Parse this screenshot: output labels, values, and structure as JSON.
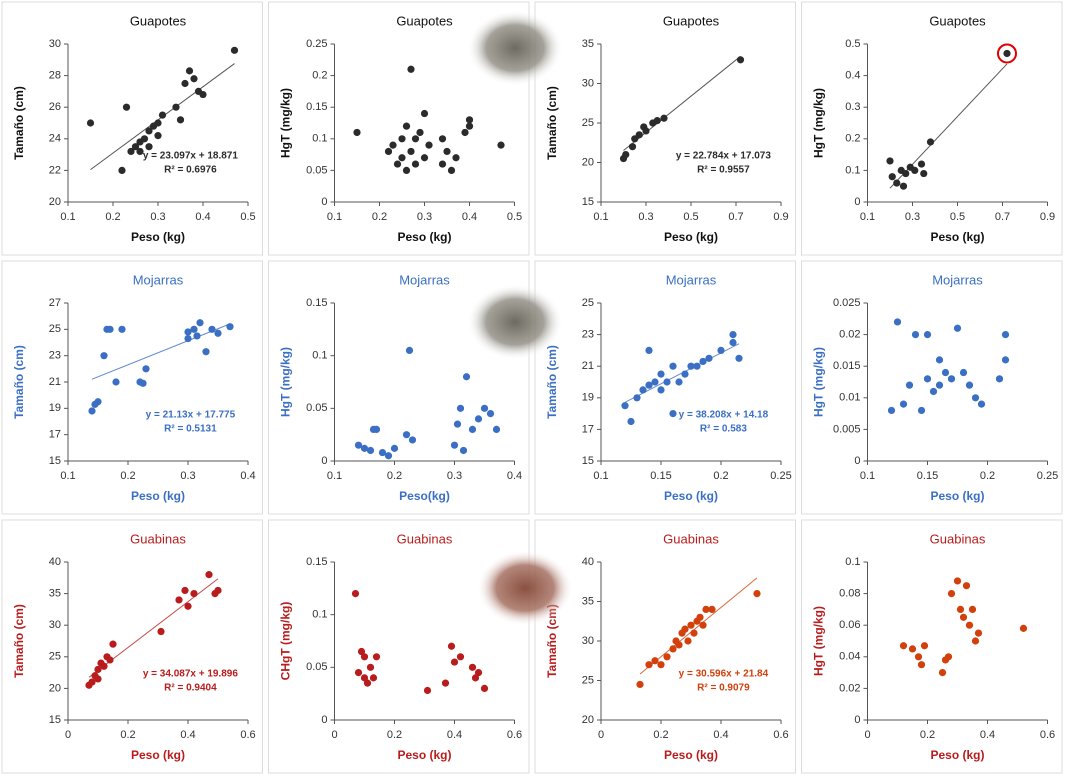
{
  "chart_data": [
    {
      "type": "scatter",
      "title": "Guapotes",
      "xlabel": "Peso (kg)",
      "ylabel": "Tamaño (cm)",
      "color": "#2b2b2b",
      "title_color": "#111111",
      "trendline": true,
      "xlim": [
        0.1,
        0.5
      ],
      "xticks": [
        0.1,
        0.2,
        0.3,
        0.4,
        0.5
      ],
      "ylim": [
        20,
        30
      ],
      "yticks": [
        20,
        22,
        24,
        26,
        28,
        30
      ],
      "x": [
        0.15,
        0.22,
        0.23,
        0.24,
        0.25,
        0.26,
        0.26,
        0.27,
        0.28,
        0.28,
        0.29,
        0.3,
        0.3,
        0.31,
        0.34,
        0.35,
        0.36,
        0.37,
        0.38,
        0.39,
        0.4,
        0.47
      ],
      "values": [
        25,
        22,
        26,
        23.2,
        23.5,
        23.8,
        23.2,
        24,
        24.5,
        23.5,
        24.8,
        25,
        24.2,
        25.5,
        26,
        25.2,
        27.5,
        28.3,
        27.8,
        27,
        26.8,
        29.6
      ],
      "annotations": [
        "y = 23.097x + 18.871",
        "R² = 0.6976"
      ]
    },
    {
      "type": "scatter",
      "title": "Guapotes",
      "xlabel": "Peso (kg)",
      "ylabel": "HgT (mg/kg)",
      "color": "#2b2b2b",
      "title_color": "#111111",
      "trendline": false,
      "xlim": [
        0.1,
        0.5
      ],
      "xticks": [
        0.1,
        0.2,
        0.3,
        0.4,
        0.5
      ],
      "ylim": [
        0,
        0.25
      ],
      "yticks": [
        0,
        0.05,
        0.1,
        0.15,
        0.2,
        0.25
      ],
      "x": [
        0.15,
        0.22,
        0.23,
        0.24,
        0.25,
        0.25,
        0.26,
        0.26,
        0.27,
        0.27,
        0.28,
        0.28,
        0.29,
        0.3,
        0.3,
        0.31,
        0.34,
        0.34,
        0.35,
        0.36,
        0.37,
        0.39,
        0.4,
        0.4,
        0.47
      ],
      "values": [
        0.11,
        0.08,
        0.09,
        0.06,
        0.1,
        0.07,
        0.12,
        0.05,
        0.21,
        0.08,
        0.1,
        0.06,
        0.11,
        0.07,
        0.14,
        0.09,
        0.1,
        0.06,
        0.08,
        0.05,
        0.07,
        0.11,
        0.13,
        0.12,
        0.09
      ]
    },
    {
      "type": "scatter",
      "title": "Guapotes",
      "xlabel": "Peso (kg)",
      "ylabel": "Tamaño (cm)",
      "color": "#2b2b2b",
      "title_color": "#111111",
      "trendline": true,
      "xlim": [
        0.1,
        0.9
      ],
      "xticks": [
        0.1,
        0.3,
        0.5,
        0.7,
        0.9
      ],
      "ylim": [
        15,
        35
      ],
      "yticks": [
        15,
        20,
        25,
        30,
        35
      ],
      "x": [
        0.2,
        0.21,
        0.24,
        0.25,
        0.27,
        0.29,
        0.3,
        0.33,
        0.35,
        0.38,
        0.72
      ],
      "values": [
        20.5,
        21,
        22,
        23,
        23.5,
        24.5,
        24,
        25,
        25.3,
        25.6,
        33
      ],
      "annotations": [
        "y = 22.784x + 17.073",
        "R² = 0.9557"
      ]
    },
    {
      "type": "scatter",
      "title": "Guapotes",
      "xlabel": "Peso (kg)",
      "ylabel": "HgT (mg/kg)",
      "color": "#2b2b2b",
      "title_color": "#111111",
      "trendline": true,
      "xlim": [
        0.1,
        0.9
      ],
      "xticks": [
        0.1,
        0.3,
        0.5,
        0.7,
        0.9
      ],
      "ylim": [
        0,
        0.5
      ],
      "yticks": [
        0,
        0.1,
        0.2,
        0.3,
        0.4,
        0.5
      ],
      "x": [
        0.2,
        0.21,
        0.23,
        0.25,
        0.26,
        0.27,
        0.29,
        0.31,
        0.34,
        0.35,
        0.38,
        0.72
      ],
      "values": [
        0.13,
        0.08,
        0.06,
        0.1,
        0.05,
        0.09,
        0.11,
        0.1,
        0.12,
        0.09,
        0.19,
        0.47
      ]
    },
    {
      "type": "scatter",
      "title": "Mojarras",
      "xlabel": "Peso (kg)",
      "ylabel": "Tamaño (cm)",
      "color": "#3a6fc4",
      "title_color": "#3a6fc4",
      "trendline": true,
      "xlim": [
        0.1,
        0.4
      ],
      "xticks": [
        0.1,
        0.2,
        0.3,
        0.4
      ],
      "ylim": [
        15,
        27
      ],
      "yticks": [
        15,
        17,
        19,
        21,
        23,
        25,
        27
      ],
      "x": [
        0.14,
        0.145,
        0.15,
        0.16,
        0.165,
        0.17,
        0.18,
        0.19,
        0.22,
        0.225,
        0.23,
        0.3,
        0.3,
        0.31,
        0.315,
        0.32,
        0.33,
        0.34,
        0.35,
        0.37
      ],
      "values": [
        18.8,
        19.3,
        19.5,
        23,
        25,
        25,
        21,
        25,
        21,
        20.9,
        22,
        24.3,
        24.8,
        25,
        24.5,
        25.5,
        23.3,
        25,
        24.7,
        25.2
      ],
      "annotations": [
        "y = 21.13x + 17.775",
        "R² = 0.5131"
      ]
    },
    {
      "type": "scatter",
      "title": "Mojarras",
      "xlabel": "Peso(kg)",
      "ylabel": "HgT (mg/kg)",
      "color": "#3a6fc4",
      "title_color": "#3a6fc4",
      "trendline": false,
      "xlim": [
        0.1,
        0.4
      ],
      "xticks": [
        0.1,
        0.2,
        0.3,
        0.4
      ],
      "ylim": [
        0,
        0.15
      ],
      "yticks": [
        0,
        0.05,
        0.1,
        0.15
      ],
      "x": [
        0.14,
        0.15,
        0.16,
        0.165,
        0.17,
        0.18,
        0.19,
        0.2,
        0.22,
        0.225,
        0.23,
        0.3,
        0.305,
        0.31,
        0.315,
        0.32,
        0.33,
        0.34,
        0.35,
        0.36,
        0.37
      ],
      "values": [
        0.015,
        0.012,
        0.01,
        0.03,
        0.03,
        0.008,
        0.005,
        0.012,
        0.025,
        0.105,
        0.02,
        0.015,
        0.035,
        0.05,
        0.01,
        0.08,
        0.03,
        0.04,
        0.05,
        0.045,
        0.03
      ]
    },
    {
      "type": "scatter",
      "title": "Mojarras",
      "xlabel": "Peso (kg)",
      "ylabel": "Tamaño (cm)",
      "color": "#3a6fc4",
      "title_color": "#3a6fc4",
      "trendline": true,
      "xlim": [
        0.1,
        0.25
      ],
      "xticks": [
        0.1,
        0.15,
        0.2,
        0.25
      ],
      "ylim": [
        15,
        25
      ],
      "yticks": [
        15,
        17,
        19,
        21,
        23,
        25
      ],
      "x": [
        0.12,
        0.125,
        0.13,
        0.135,
        0.14,
        0.14,
        0.145,
        0.15,
        0.15,
        0.155,
        0.16,
        0.16,
        0.165,
        0.17,
        0.175,
        0.18,
        0.185,
        0.19,
        0.2,
        0.21,
        0.21,
        0.215
      ],
      "values": [
        18.5,
        17.5,
        19,
        19.5,
        22,
        19.8,
        20,
        20.5,
        19.5,
        20,
        21,
        18,
        20,
        20.5,
        21,
        21,
        21.3,
        21.5,
        22,
        23,
        22.5,
        21.5
      ],
      "annotations": [
        "y = 38.208x + 14.18",
        "R² = 0.583"
      ]
    },
    {
      "type": "scatter",
      "title": "Mojarras",
      "xlabel": "Peso (kg)",
      "ylabel": "HgT (mg/kg)",
      "color": "#3a6fc4",
      "title_color": "#3a6fc4",
      "trendline": false,
      "xlim": [
        0.1,
        0.25
      ],
      "xticks": [
        0.1,
        0.15,
        0.2,
        0.25
      ],
      "ylim": [
        0,
        0.025
      ],
      "yticks": [
        0,
        0.005,
        0.01,
        0.015,
        0.02,
        0.025
      ],
      "x": [
        0.12,
        0.125,
        0.13,
        0.135,
        0.14,
        0.145,
        0.15,
        0.15,
        0.155,
        0.16,
        0.16,
        0.165,
        0.17,
        0.175,
        0.18,
        0.185,
        0.19,
        0.195,
        0.21,
        0.215,
        0.215
      ],
      "values": [
        0.008,
        0.022,
        0.009,
        0.012,
        0.02,
        0.008,
        0.02,
        0.013,
        0.011,
        0.016,
        0.012,
        0.014,
        0.013,
        0.021,
        0.014,
        0.012,
        0.01,
        0.009,
        0.013,
        0.02,
        0.016
      ]
    },
    {
      "type": "scatter",
      "title": "Guabinas",
      "xlabel": "Peso (kg)",
      "ylabel": "Tamaño (cm)",
      "color": "#b81c1c",
      "title_color": "#b81c1c",
      "trendline": true,
      "xlim": [
        0,
        0.6
      ],
      "xticks": [
        0,
        0.2,
        0.4,
        0.6
      ],
      "ylim": [
        15,
        40
      ],
      "yticks": [
        15,
        20,
        25,
        30,
        35,
        40
      ],
      "x": [
        0.07,
        0.08,
        0.09,
        0.1,
        0.1,
        0.11,
        0.12,
        0.13,
        0.14,
        0.15,
        0.31,
        0.37,
        0.39,
        0.4,
        0.42,
        0.47,
        0.49,
        0.5
      ],
      "values": [
        20.5,
        21,
        22,
        23,
        21.5,
        24,
        23.5,
        25,
        24.5,
        27,
        29,
        34,
        35.5,
        33,
        35,
        38,
        35,
        35.5
      ],
      "annotations": [
        "y = 34.087x + 19.896",
        "R² = 0.9404"
      ]
    },
    {
      "type": "scatter",
      "title": "Guabinas",
      "xlabel": "Peso (kg)",
      "ylabel": "CHgT (mg/kg)",
      "color": "#b81c1c",
      "title_color": "#b81c1c",
      "trendline": false,
      "xlim": [
        0,
        0.6
      ],
      "xticks": [
        0,
        0.2,
        0.4,
        0.6
      ],
      "ylim": [
        0,
        0.15
      ],
      "yticks": [
        0,
        0.05,
        0.1,
        0.15
      ],
      "x": [
        0.07,
        0.08,
        0.09,
        0.1,
        0.1,
        0.11,
        0.12,
        0.13,
        0.14,
        0.31,
        0.37,
        0.39,
        0.4,
        0.42,
        0.46,
        0.47,
        0.48,
        0.5
      ],
      "values": [
        0.12,
        0.045,
        0.065,
        0.04,
        0.06,
        0.035,
        0.05,
        0.04,
        0.06,
        0.028,
        0.035,
        0.07,
        0.055,
        0.06,
        0.05,
        0.04,
        0.045,
        0.03
      ]
    },
    {
      "type": "scatter",
      "title": "Guabinas",
      "xlabel": "Peso (kg)",
      "ylabel": "Tamaño (cm)",
      "color": "#d2400c",
      "title_color": "#b81c1c",
      "trendline": true,
      "xlim": [
        0,
        0.6
      ],
      "xticks": [
        0,
        0.2,
        0.4,
        0.6
      ],
      "ylim": [
        20,
        40
      ],
      "yticks": [
        20,
        25,
        30,
        35,
        40
      ],
      "x": [
        0.13,
        0.16,
        0.18,
        0.2,
        0.22,
        0.24,
        0.25,
        0.26,
        0.27,
        0.28,
        0.29,
        0.3,
        0.31,
        0.32,
        0.33,
        0.34,
        0.35,
        0.37,
        0.52
      ],
      "values": [
        24.5,
        27,
        27.5,
        27,
        28,
        29,
        30,
        29.5,
        31,
        31.5,
        30,
        32,
        31,
        32.5,
        33,
        32,
        34,
        34,
        36
      ],
      "annotations": [
        "y = 30.596x + 21.84",
        "R² = 0.9079"
      ]
    },
    {
      "type": "scatter",
      "title": "Guabinas",
      "xlabel": "Peso (kg)",
      "ylabel": "HgT (mg/kg)",
      "color": "#d2400c",
      "title_color": "#b81c1c",
      "trendline": false,
      "xlim": [
        0,
        0.6
      ],
      "xticks": [
        0,
        0.2,
        0.4,
        0.6
      ],
      "ylim": [
        0,
        0.1
      ],
      "yticks": [
        0,
        0.02,
        0.04,
        0.06,
        0.08,
        0.1
      ],
      "x": [
        0.12,
        0.15,
        0.17,
        0.18,
        0.19,
        0.25,
        0.26,
        0.27,
        0.28,
        0.3,
        0.31,
        0.32,
        0.33,
        0.34,
        0.35,
        0.36,
        0.37,
        0.52
      ],
      "values": [
        0.047,
        0.045,
        0.04,
        0.035,
        0.047,
        0.03,
        0.038,
        0.04,
        0.08,
        0.088,
        0.07,
        0.065,
        0.085,
        0.06,
        0.07,
        0.05,
        0.055,
        0.058
      ]
    }
  ]
}
